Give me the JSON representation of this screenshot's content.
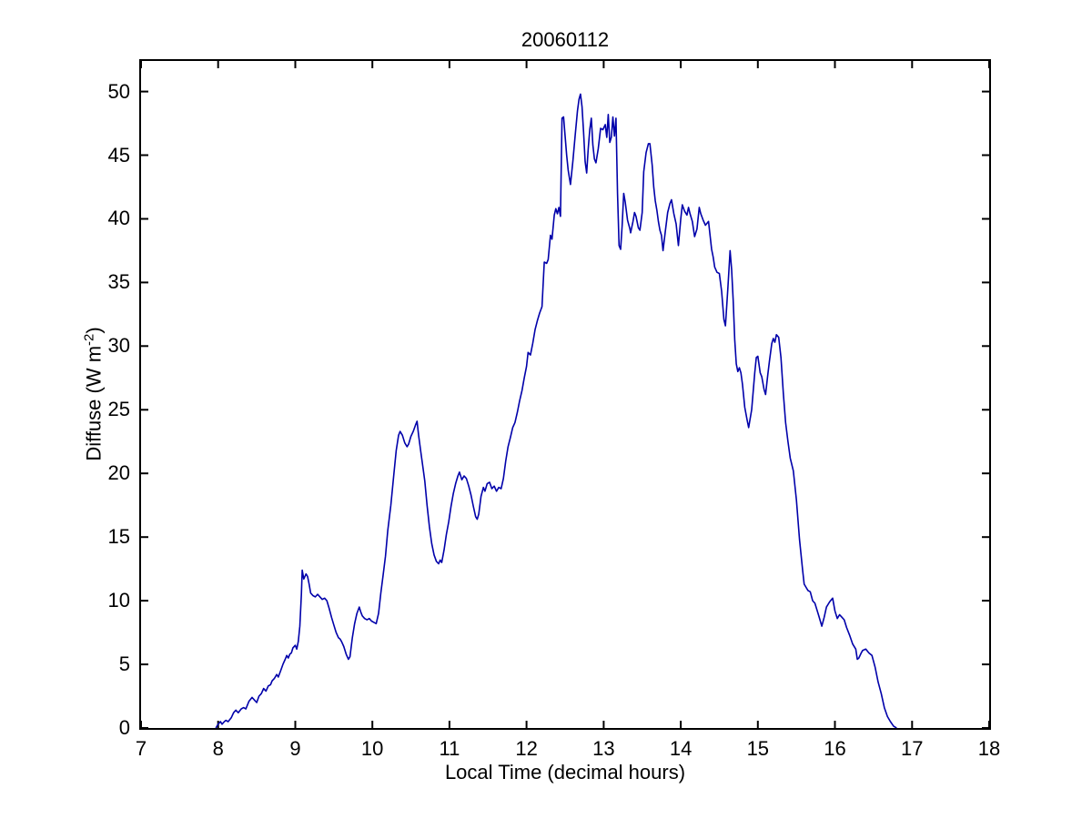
{
  "figure": {
    "title": "20060112",
    "xlabel": "Local Time (decimal hours)",
    "ylabel_pre": "Diffuse (W m",
    "ylabel_sup": "-2",
    "ylabel_post": ")"
  },
  "chart_data": {
    "type": "line",
    "title": "20060112",
    "xlabel": "Local Time (decimal hours)",
    "ylabel": "Diffuse (W m^-2)",
    "xlim": [
      7,
      18
    ],
    "ylim": [
      0,
      52.4
    ],
    "xticks": [
      7,
      8,
      9,
      10,
      11,
      12,
      13,
      14,
      15,
      16,
      17,
      18
    ],
    "yticks": [
      0,
      5,
      10,
      15,
      20,
      25,
      30,
      35,
      40,
      45,
      50
    ],
    "grid": false,
    "legend": "none",
    "line_color": "#0000AA",
    "axis_color": "#000000",
    "series": [
      {
        "name": "diffuse",
        "x": [
          7.97,
          8.0,
          8.03,
          8.05,
          8.08,
          8.1,
          8.13,
          8.17,
          8.2,
          8.23,
          8.26,
          8.3,
          8.33,
          8.36,
          8.4,
          8.44,
          8.47,
          8.5,
          8.53,
          8.56,
          8.59,
          8.62,
          8.65,
          8.68,
          8.7,
          8.73,
          8.76,
          8.78,
          8.81,
          8.84,
          8.87,
          8.89,
          8.91,
          8.93,
          8.95,
          8.97,
          9.0,
          9.02,
          9.04,
          9.06,
          9.08,
          9.09,
          9.11,
          9.14,
          9.16,
          9.18,
          9.2,
          9.23,
          9.26,
          9.29,
          9.32,
          9.35,
          9.38,
          9.41,
          9.44,
          9.47,
          9.5,
          9.53,
          9.56,
          9.58,
          9.6,
          9.63,
          9.66,
          9.69,
          9.71,
          9.74,
          9.77,
          9.8,
          9.83,
          9.85,
          9.87,
          9.9,
          9.93,
          9.96,
          9.99,
          10.02,
          10.05,
          10.08,
          10.11,
          10.14,
          10.17,
          10.2,
          10.24,
          10.28,
          10.31,
          10.34,
          10.36,
          10.39,
          10.42,
          10.45,
          10.47,
          10.5,
          10.53,
          10.56,
          10.58,
          10.6,
          10.63,
          10.66,
          10.68,
          10.71,
          10.74,
          10.77,
          10.8,
          10.83,
          10.86,
          10.88,
          10.9,
          10.93,
          10.96,
          10.99,
          11.02,
          11.05,
          11.08,
          11.11,
          11.13,
          11.16,
          11.19,
          11.22,
          11.25,
          11.28,
          11.31,
          11.34,
          11.36,
          11.38,
          11.41,
          11.44,
          11.46,
          11.49,
          11.52,
          11.55,
          11.58,
          11.61,
          11.64,
          11.67,
          11.7,
          11.73,
          11.76,
          11.79,
          11.82,
          11.85,
          11.88,
          11.91,
          11.94,
          11.97,
          12.0,
          12.02,
          12.05,
          12.08,
          12.11,
          12.14,
          12.17,
          12.2,
          12.23,
          12.26,
          12.28,
          12.31,
          12.33,
          12.36,
          12.38,
          12.4,
          12.42,
          12.44,
          12.46,
          12.48,
          12.5,
          12.52,
          12.54,
          12.57,
          12.6,
          12.63,
          12.66,
          12.68,
          12.7,
          12.72,
          12.74,
          12.76,
          12.78,
          12.8,
          12.82,
          12.84,
          12.86,
          12.88,
          12.9,
          12.93,
          12.96,
          12.99,
          13.02,
          13.04,
          13.06,
          13.08,
          13.1,
          13.12,
          13.14,
          13.16,
          13.18,
          13.2,
          13.22,
          13.24,
          13.26,
          13.28,
          13.31,
          13.34,
          13.35,
          13.38,
          13.4,
          13.42,
          13.45,
          13.47,
          13.5,
          13.52,
          13.55,
          13.58,
          13.6,
          13.63,
          13.65,
          13.67,
          13.69,
          13.71,
          13.73,
          13.75,
          13.77,
          13.8,
          13.83,
          13.86,
          13.88,
          13.91,
          13.94,
          13.97,
          14.0,
          14.02,
          14.05,
          14.08,
          14.1,
          14.12,
          14.15,
          14.18,
          14.21,
          14.24,
          14.26,
          14.29,
          14.32,
          14.36,
          14.4,
          14.42,
          14.44,
          14.47,
          14.5,
          14.53,
          14.56,
          14.58,
          14.61,
          14.64,
          14.66,
          14.68,
          14.7,
          14.72,
          14.74,
          14.76,
          14.78,
          14.8,
          14.83,
          14.86,
          14.88,
          14.92,
          14.96,
          14.98,
          15.0,
          15.03,
          15.05,
          15.08,
          15.1,
          15.13,
          15.15,
          15.18,
          15.2,
          15.22,
          15.24,
          15.27,
          15.3,
          15.33,
          15.36,
          15.39,
          15.42,
          15.46,
          15.5,
          15.54,
          15.58,
          15.6,
          15.63,
          15.65,
          15.68,
          15.71,
          15.74,
          15.77,
          15.79,
          15.83,
          15.86,
          15.89,
          15.93,
          15.97,
          16.0,
          16.03,
          16.06,
          16.09,
          16.12,
          16.15,
          16.19,
          16.23,
          16.27,
          16.29,
          16.31,
          16.34,
          16.36,
          16.4,
          16.44,
          16.48,
          16.52,
          16.56,
          16.6,
          16.64,
          16.68,
          16.72,
          16.76,
          16.8
        ],
        "y": [
          0.0,
          0.3,
          0.5,
          0.3,
          0.5,
          0.6,
          0.5,
          0.8,
          1.2,
          1.4,
          1.2,
          1.5,
          1.6,
          1.5,
          2.1,
          2.4,
          2.2,
          2.0,
          2.5,
          2.7,
          3.1,
          2.9,
          3.3,
          3.4,
          3.7,
          3.9,
          4.2,
          4.0,
          4.5,
          5.0,
          5.4,
          5.7,
          5.5,
          5.8,
          5.9,
          6.3,
          6.5,
          6.2,
          6.8,
          8.0,
          10.5,
          12.4,
          11.7,
          12.1,
          11.9,
          11.3,
          10.6,
          10.4,
          10.3,
          10.5,
          10.3,
          10.1,
          10.2,
          10.0,
          9.4,
          8.7,
          8.1,
          7.5,
          7.1,
          7.0,
          6.8,
          6.4,
          5.8,
          5.4,
          5.6,
          7.1,
          8.2,
          9.0,
          9.5,
          9.1,
          8.8,
          8.6,
          8.5,
          8.6,
          8.4,
          8.3,
          8.2,
          9.0,
          10.6,
          12.0,
          13.5,
          15.5,
          17.5,
          20.0,
          21.8,
          23.0,
          23.3,
          23.0,
          22.4,
          22.1,
          22.3,
          22.9,
          23.3,
          23.8,
          24.1,
          23.0,
          21.6,
          20.3,
          19.4,
          17.5,
          15.8,
          14.5,
          13.6,
          13.1,
          12.9,
          13.2,
          13.0,
          14.0,
          15.2,
          16.2,
          17.4,
          18.4,
          19.2,
          19.8,
          20.1,
          19.5,
          19.8,
          19.6,
          19.0,
          18.3,
          17.4,
          16.6,
          16.4,
          16.8,
          18.2,
          18.9,
          18.6,
          19.2,
          19.3,
          18.8,
          19.0,
          18.6,
          18.9,
          18.8,
          19.6,
          21.0,
          22.1,
          22.8,
          23.6,
          24.0,
          24.8,
          25.7,
          26.5,
          27.5,
          28.4,
          29.5,
          29.3,
          30.2,
          31.3,
          32.0,
          32.6,
          33.1,
          36.6,
          36.5,
          36.8,
          38.7,
          38.4,
          40.3,
          40.8,
          40.4,
          40.9,
          40.2,
          47.9,
          48.0,
          46.5,
          45.0,
          43.8,
          42.7,
          44.5,
          46.5,
          48.5,
          49.4,
          49.8,
          48.8,
          46.8,
          44.5,
          43.6,
          45.5,
          47.0,
          47.9,
          45.8,
          44.7,
          44.4,
          45.5,
          47.1,
          47.0,
          47.4,
          46.4,
          48.2,
          46.0,
          46.4,
          48.0,
          46.5,
          47.9,
          42.0,
          37.9,
          37.6,
          39.5,
          42.0,
          41.3,
          39.9,
          39.2,
          38.9,
          39.8,
          40.5,
          40.2,
          39.3,
          39.1,
          40.5,
          43.7,
          45.2,
          45.9,
          45.9,
          44.2,
          42.5,
          41.4,
          40.7,
          39.8,
          39.1,
          38.7,
          37.5,
          39.0,
          40.5,
          41.2,
          41.5,
          40.4,
          39.6,
          37.9,
          40.0,
          41.1,
          40.6,
          40.3,
          40.9,
          40.4,
          39.8,
          38.6,
          39.2,
          40.9,
          40.4,
          39.9,
          39.5,
          39.8,
          37.6,
          37.0,
          36.2,
          35.8,
          35.7,
          34.3,
          32.1,
          31.6,
          34.5,
          37.5,
          36.0,
          33.6,
          30.5,
          28.6,
          28.0,
          28.3,
          27.9,
          27.0,
          25.2,
          24.2,
          23.6,
          25.0,
          27.9,
          29.1,
          29.2,
          27.9,
          27.6,
          26.6,
          26.2,
          27.8,
          28.8,
          30.2,
          30.6,
          30.3,
          30.9,
          30.7,
          29.1,
          26.3,
          24.0,
          22.5,
          21.2,
          20.2,
          17.9,
          14.8,
          12.4,
          11.3,
          11.0,
          10.8,
          10.7,
          10.0,
          9.8,
          9.2,
          8.8,
          8.0,
          8.7,
          9.5,
          9.9,
          10.2,
          9.2,
          8.6,
          8.9,
          8.7,
          8.5,
          7.9,
          7.3,
          6.6,
          6.2,
          5.4,
          5.5,
          5.9,
          6.1,
          6.2,
          5.9,
          5.7,
          4.8,
          3.6,
          2.7,
          1.6,
          0.9,
          0.5,
          0.15,
          0.0
        ]
      }
    ]
  }
}
